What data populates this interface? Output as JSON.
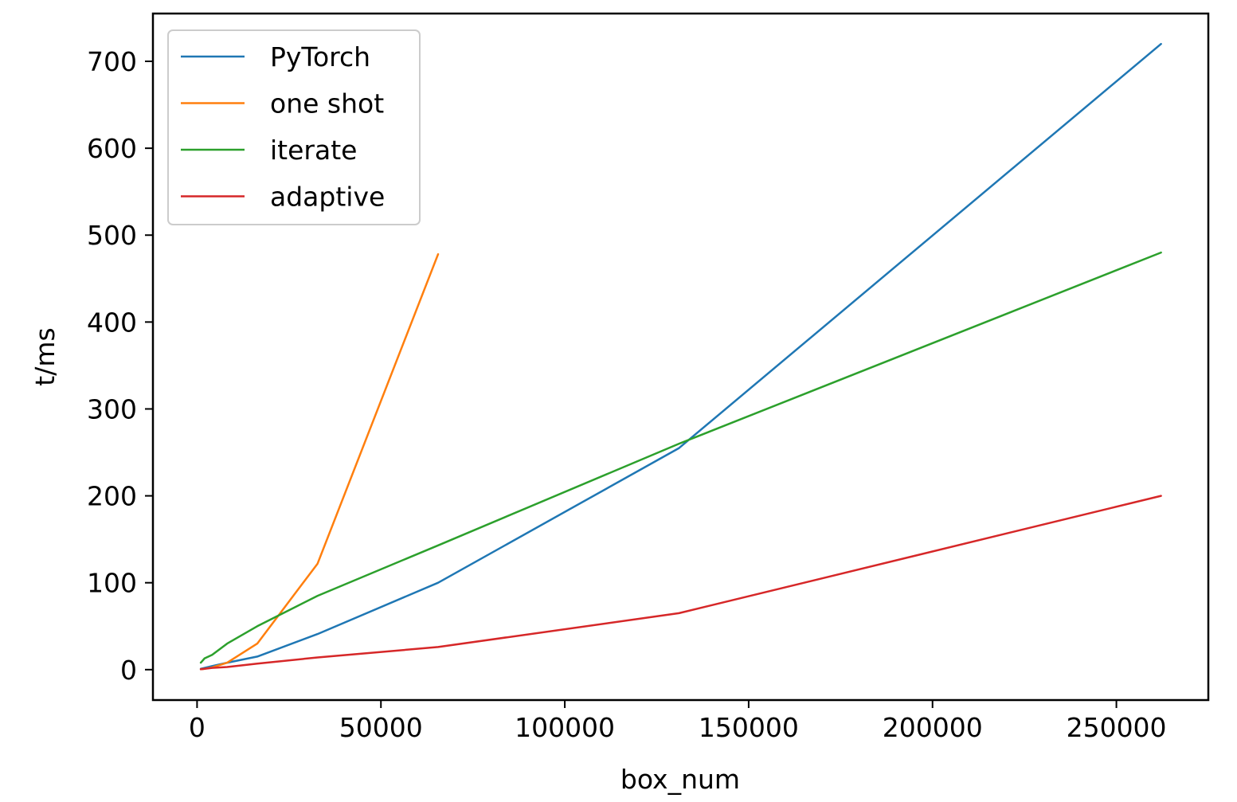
{
  "chart_data": {
    "type": "line",
    "title": "",
    "xlabel": "box_num",
    "ylabel": "t/ms",
    "xlim": [
      -12000,
      275000
    ],
    "ylim": [
      -35,
      755
    ],
    "x_ticks": [
      0,
      50000,
      100000,
      150000,
      200000,
      250000
    ],
    "y_ticks": [
      0,
      100,
      200,
      300,
      400,
      500,
      600,
      700
    ],
    "grid": false,
    "legend_position": "top-left",
    "series": [
      {
        "name": "PyTorch",
        "color": "#1f77b4",
        "x": [
          1024,
          2048,
          4096,
          8192,
          16384,
          32768,
          65536,
          131072,
          262144
        ],
        "y": [
          1,
          2,
          4,
          8,
          15,
          41,
          100,
          255,
          720
        ]
      },
      {
        "name": "one shot",
        "color": "#ff7f0e",
        "x": [
          1024,
          2048,
          4096,
          8192,
          16384,
          32768,
          65536
        ],
        "y": [
          0.5,
          1,
          2.5,
          8,
          30,
          122,
          478
        ]
      },
      {
        "name": "iterate",
        "color": "#2ca02c",
        "x": [
          1024,
          2048,
          4096,
          8192,
          16384,
          32768,
          65536,
          131072,
          262144
        ],
        "y": [
          8,
          13,
          17,
          30,
          50,
          85,
          143,
          260,
          480
        ]
      },
      {
        "name": "adaptive",
        "color": "#d62728",
        "x": [
          1024,
          2048,
          4096,
          8192,
          16384,
          32768,
          65536,
          131072,
          262144
        ],
        "y": [
          0.5,
          1,
          2,
          3,
          7,
          14,
          26,
          65,
          200
        ]
      }
    ]
  }
}
